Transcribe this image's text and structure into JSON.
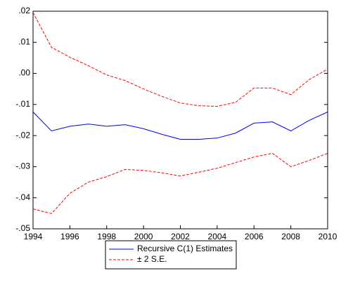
{
  "chart_data": {
    "type": "line",
    "x": [
      1994,
      1995,
      1996,
      1997,
      1998,
      1999,
      2000,
      2001,
      2002,
      2003,
      2004,
      2005,
      2006,
      2007,
      2008,
      2009,
      2010
    ],
    "series": [
      {
        "name": "Recursive C(1) Estimates",
        "color": "#0000ff",
        "dashed": false,
        "values": [
          -0.0124,
          -0.0185,
          -0.017,
          -0.0163,
          -0.017,
          -0.0165,
          -0.0178,
          -0.0196,
          -0.0212,
          -0.0212,
          -0.0208,
          -0.0192,
          -0.016,
          -0.0156,
          -0.0185,
          -0.0151,
          -0.0124
        ]
      },
      {
        "name": "± 2 S.E.",
        "color": "#ff0000",
        "dashed": true,
        "values": [
          0.0196,
          0.0084,
          0.0052,
          0.0025,
          -0.0005,
          -0.0023,
          -0.005,
          -0.0074,
          -0.0095,
          -0.0104,
          -0.0106,
          -0.0093,
          -0.0047,
          -0.0047,
          -0.0068,
          -0.002,
          0.0014
        ],
        "lower": [
          -0.0436,
          -0.0451,
          -0.0386,
          -0.035,
          -0.0332,
          -0.0309,
          -0.0312,
          -0.032,
          -0.033,
          -0.0318,
          -0.0305,
          -0.0287,
          -0.0269,
          -0.0257,
          -0.03,
          -0.028,
          -0.0257
        ]
      }
    ],
    "xlim": [
      1994,
      2010
    ],
    "xticks": [
      1994,
      1996,
      1998,
      2000,
      2002,
      2004,
      2006,
      2008,
      2010
    ],
    "ylim": [
      -0.05,
      0.02
    ],
    "yticks": [
      {
        "value": -0.05,
        "label": "-.05"
      },
      {
        "value": -0.04,
        "label": "-.04"
      },
      {
        "value": -0.03,
        "label": "-.03"
      },
      {
        "value": -0.02,
        "label": "-.02"
      },
      {
        "value": -0.01,
        "label": "-.01"
      },
      {
        "value": 0,
        "label": ".00"
      },
      {
        "value": 0.01,
        "label": ".01"
      },
      {
        "value": 0.02,
        "label": ".02"
      }
    ],
    "legend": "bottom"
  }
}
